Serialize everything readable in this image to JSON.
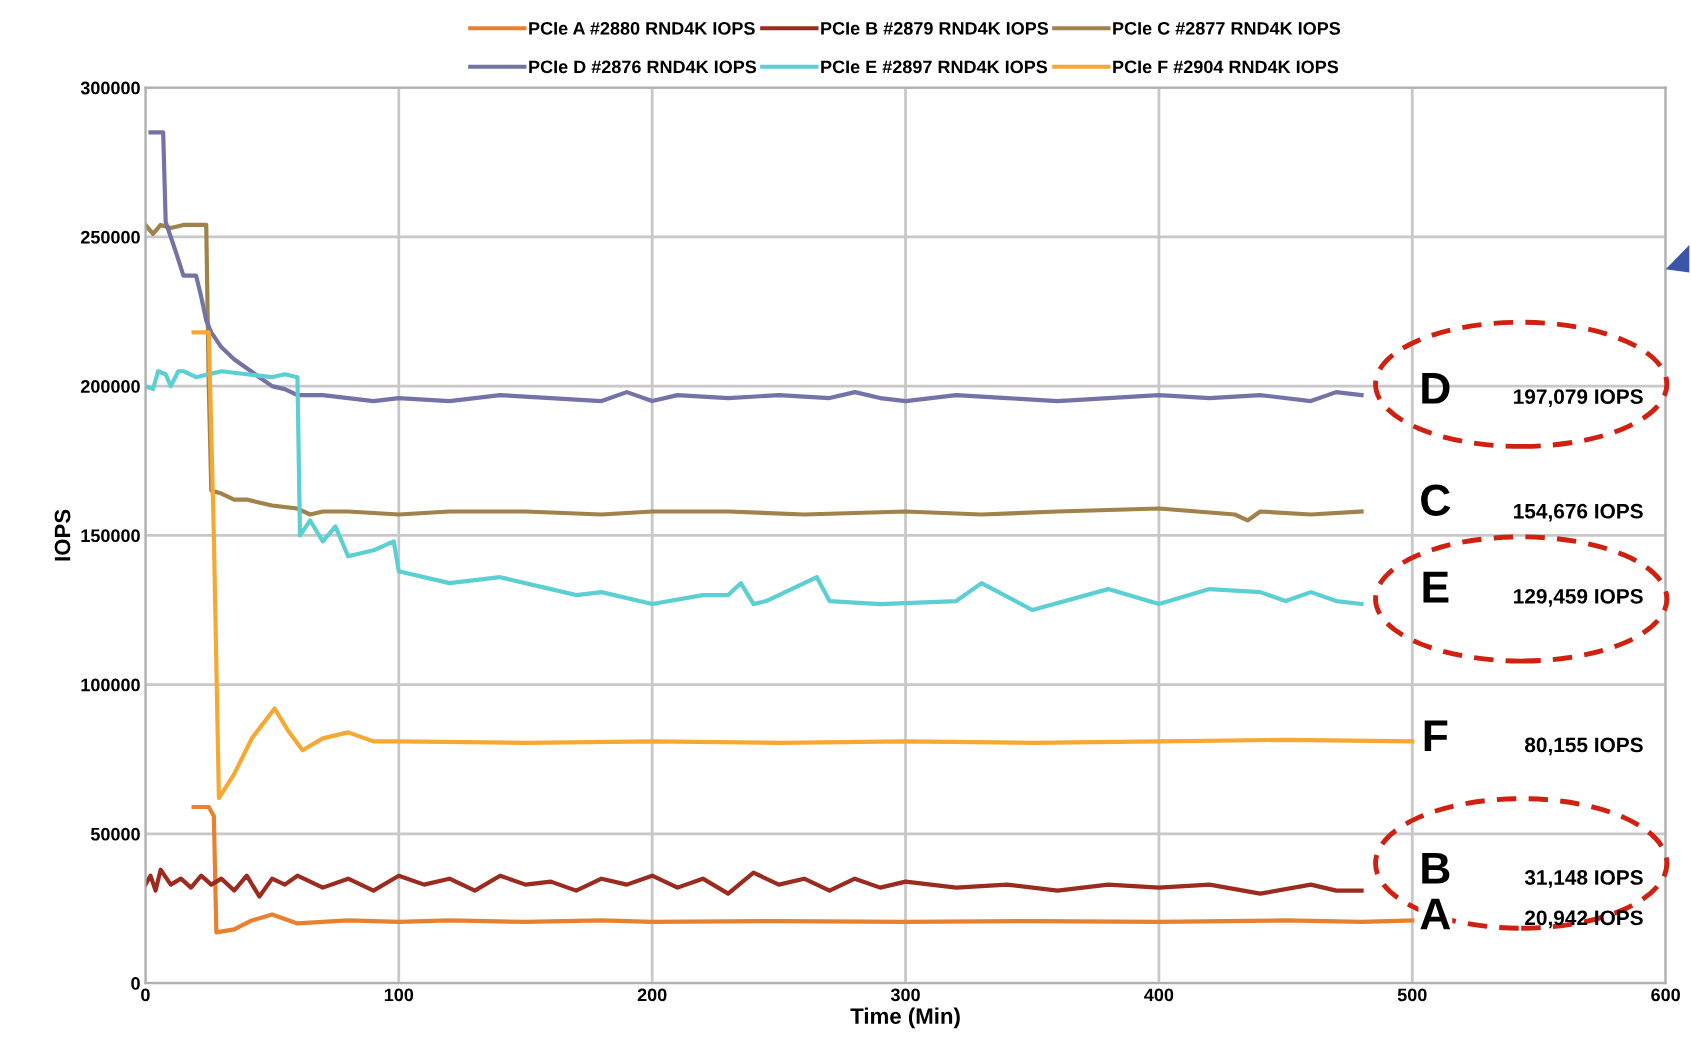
{
  "chart_data": {
    "type": "line",
    "xlabel": "Time (Min)",
    "ylabel": "IOPS",
    "xlim": [
      0,
      600
    ],
    "ylim": [
      0,
      300000
    ],
    "xticks": [
      0,
      100,
      200,
      300,
      400,
      500,
      600
    ],
    "yticks": [
      0,
      50000,
      100000,
      150000,
      200000,
      250000,
      300000
    ],
    "grid": true,
    "legend": "top",
    "marker": "none",
    "line_style": "solid",
    "series": [
      {
        "name": "PCIe A #2880 RND4K IOPS",
        "color": "#e8802f",
        "x": [
          19,
          25,
          27,
          28,
          35,
          42,
          50,
          55,
          60,
          70,
          80,
          100,
          120,
          150,
          180,
          200,
          250,
          300,
          350,
          400,
          450,
          480,
          500
        ],
        "values": [
          59000,
          59000,
          56000,
          17000,
          18000,
          21000,
          23000,
          21500,
          20000,
          20500,
          21000,
          20500,
          21000,
          20500,
          21000,
          20500,
          20800,
          20500,
          20800,
          20500,
          21000,
          20500,
          21000
        ]
      },
      {
        "name": "PCIe B #2879 RND4K IOPS",
        "color": "#9b2a1f",
        "x": [
          0,
          2,
          4,
          6,
          10,
          14,
          18,
          22,
          26,
          30,
          35,
          40,
          45,
          50,
          55,
          60,
          70,
          80,
          90,
          100,
          110,
          120,
          130,
          140,
          150,
          160,
          170,
          180,
          190,
          200,
          210,
          220,
          230,
          240,
          250,
          260,
          270,
          280,
          290,
          300,
          320,
          340,
          360,
          380,
          400,
          420,
          440,
          460,
          470,
          480
        ],
        "values": [
          33000,
          36000,
          31000,
          38000,
          33000,
          35000,
          32000,
          36000,
          33000,
          35000,
          31000,
          36000,
          29000,
          35000,
          33000,
          36000,
          32000,
          35000,
          31000,
          36000,
          33000,
          35000,
          31000,
          36000,
          33000,
          34000,
          31000,
          35000,
          33000,
          36000,
          32000,
          35000,
          30000,
          37000,
          33000,
          35000,
          31000,
          35000,
          32000,
          34000,
          32000,
          33000,
          31000,
          33000,
          32000,
          33000,
          30000,
          33000,
          31000,
          31000
        ]
      },
      {
        "name": "PCIe C #2877 RND4K IOPS",
        "color": "#a0824a",
        "x": [
          0,
          3,
          6,
          10,
          15,
          20,
          24,
          25,
          26,
          30,
          35,
          40,
          50,
          60,
          65,
          70,
          80,
          100,
          120,
          150,
          180,
          200,
          230,
          260,
          300,
          330,
          360,
          400,
          430,
          435,
          440,
          460,
          480
        ],
        "values": [
          254000,
          251000,
          254000,
          253000,
          254000,
          254000,
          254000,
          200000,
          165000,
          164000,
          162000,
          162000,
          160000,
          159000,
          157000,
          158000,
          158000,
          157000,
          158000,
          158000,
          157000,
          158000,
          158000,
          157000,
          158000,
          157000,
          158000,
          159000,
          157000,
          155000,
          158000,
          157000,
          158000
        ]
      },
      {
        "name": "PCIe D #2876 RND4K IOPS",
        "color": "#7473a8",
        "x": [
          2,
          7,
          8,
          12,
          15,
          20,
          22,
          24,
          26,
          30,
          35,
          40,
          45,
          50,
          55,
          60,
          70,
          80,
          90,
          100,
          120,
          140,
          160,
          180,
          190,
          200,
          210,
          230,
          250,
          270,
          280,
          290,
          300,
          320,
          340,
          360,
          380,
          400,
          420,
          440,
          460,
          470,
          480
        ],
        "values": [
          285000,
          285000,
          255000,
          245000,
          237000,
          237000,
          230000,
          222000,
          218000,
          213000,
          209000,
          206000,
          203000,
          200000,
          199000,
          197000,
          197000,
          196000,
          195000,
          196000,
          195000,
          197000,
          196000,
          195000,
          198000,
          195000,
          197000,
          196000,
          197000,
          196000,
          198000,
          196000,
          195000,
          197000,
          196000,
          195000,
          196000,
          197000,
          196000,
          197000,
          195000,
          198000,
          197000
        ]
      },
      {
        "name": "PCIe E #2897 RND4K IOPS",
        "color": "#5bcfd3",
        "x": [
          0,
          3,
          5,
          8,
          10,
          13,
          15,
          20,
          30,
          40,
          50,
          55,
          60,
          61,
          65,
          70,
          75,
          80,
          90,
          98,
          100,
          120,
          140,
          160,
          170,
          180,
          200,
          220,
          230,
          235,
          240,
          245,
          265,
          270,
          290,
          320,
          330,
          350,
          380,
          400,
          420,
          440,
          450,
          460,
          470,
          480
        ],
        "values": [
          200000,
          199000,
          205000,
          204000,
          200000,
          205000,
          205000,
          203000,
          205000,
          204000,
          203000,
          204000,
          203000,
          150000,
          155000,
          148000,
          153000,
          143000,
          145000,
          148000,
          138000,
          134000,
          136000,
          132000,
          130000,
          131000,
          127000,
          130000,
          130000,
          134000,
          127000,
          128000,
          136000,
          128000,
          127000,
          128000,
          134000,
          125000,
          132000,
          127000,
          132000,
          131000,
          128000,
          131000,
          128000,
          127000
        ]
      },
      {
        "name": "PCIe F #2904 RND4K IOPS",
        "color": "#f6a833",
        "x": [
          19,
          25,
          27,
          29,
          35,
          42,
          51,
          56,
          62,
          70,
          80,
          90,
          100,
          150,
          200,
          250,
          300,
          350,
          400,
          450,
          500
        ],
        "values": [
          218000,
          218000,
          150000,
          62000,
          70000,
          82000,
          92000,
          85000,
          78000,
          82000,
          84000,
          81000,
          81000,
          80500,
          81000,
          80500,
          81000,
          80500,
          81000,
          81500,
          81000
        ]
      }
    ],
    "annotations": [
      "D",
      "197,079 IOPS",
      "C",
      "154,676 IOPS",
      "E",
      "129,459 IOPS",
      "F",
      "80,155 IOPS",
      "B",
      "31,148 IOPS",
      "A",
      "20,942 IOPS"
    ]
  }
}
